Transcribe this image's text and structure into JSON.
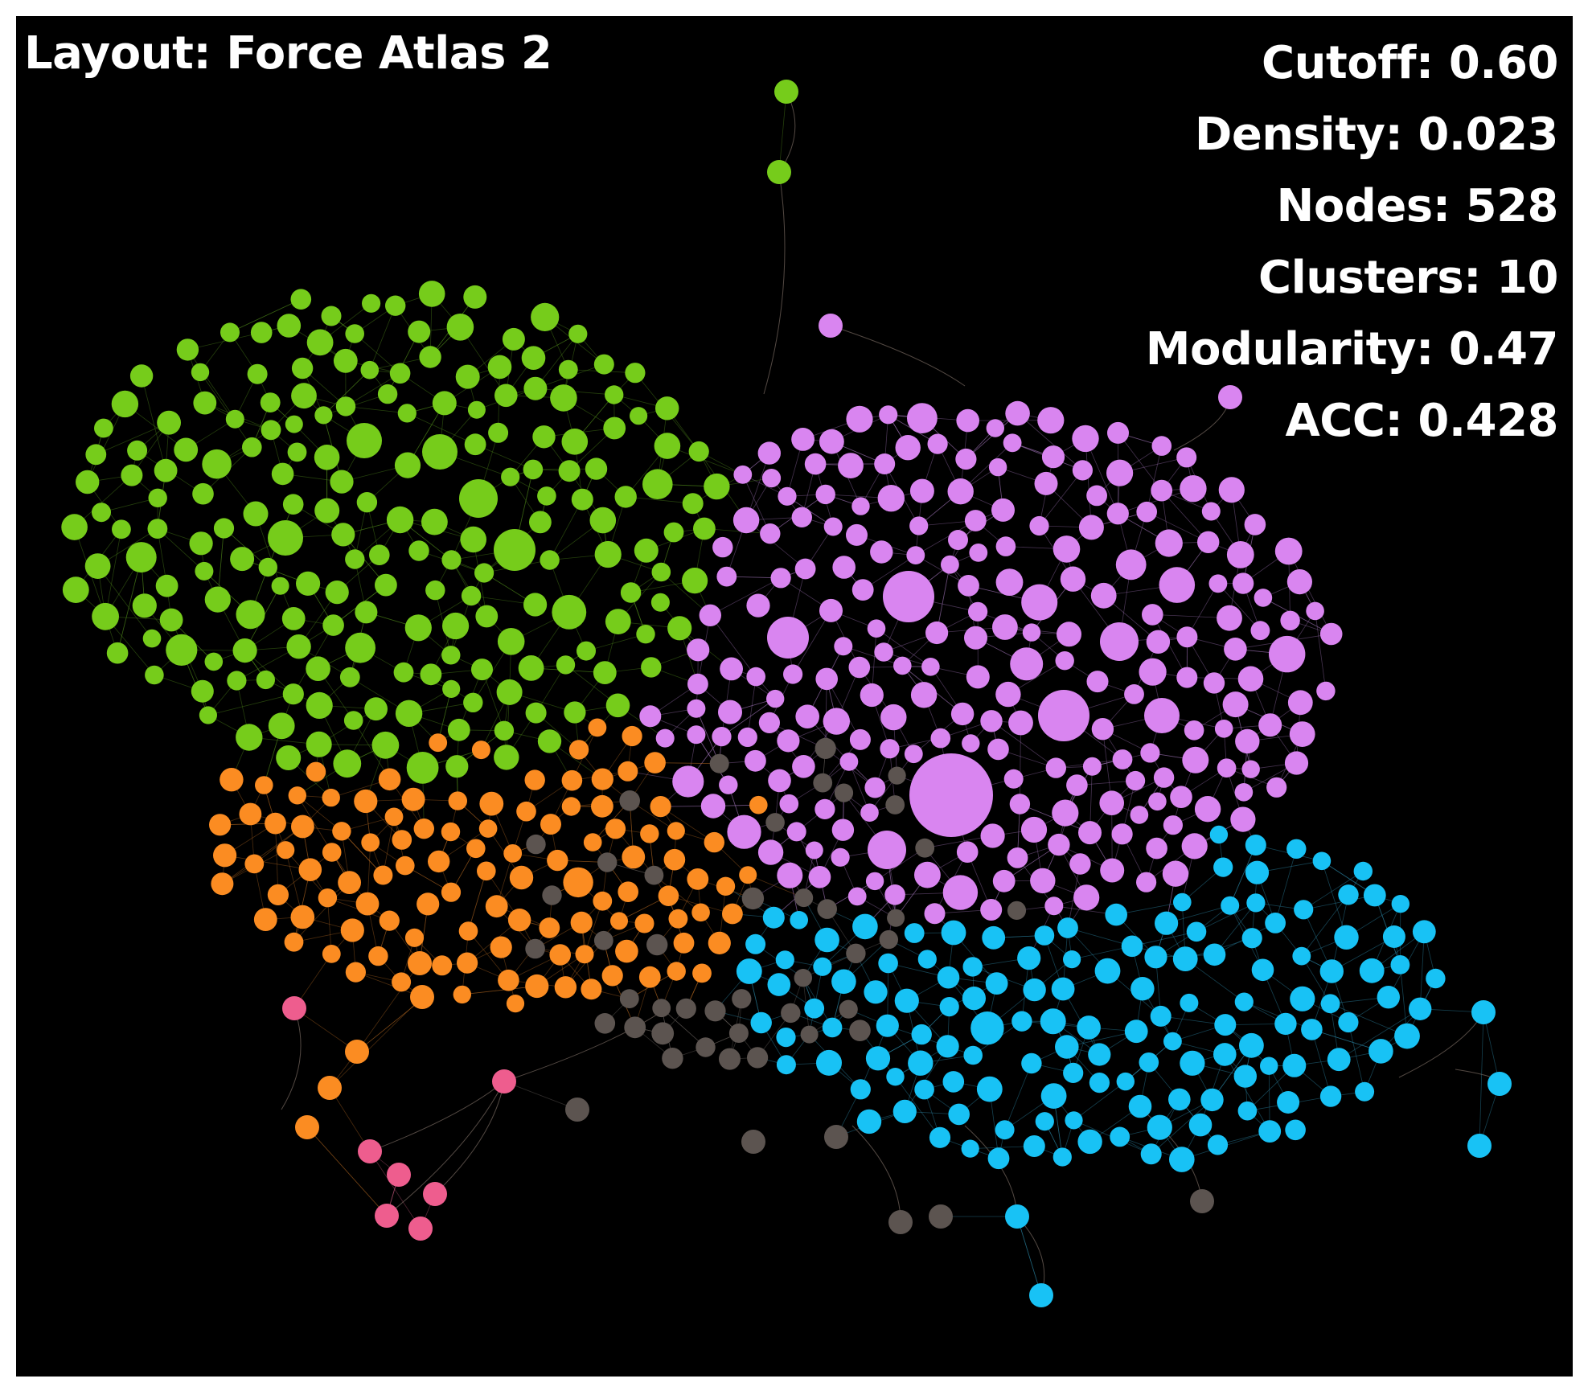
{
  "layout_label": "Layout: Force Atlas 2",
  "stats": {
    "cutoff": "Cutoff: 0.60",
    "density": "Density: 0.023",
    "nodes": "Nodes: 528",
    "clusters": "Clusters: 10",
    "modularity": "Modularity: 0.47",
    "acc": "ACC: 0.428"
  },
  "colors": {
    "background": "#000000",
    "green": "#76cc1b",
    "violet": "#d985f0",
    "orange": "#fb8c22",
    "cyan": "#18c2f5",
    "gray": "#5c5450",
    "pink": "#ee5d8e"
  }
}
